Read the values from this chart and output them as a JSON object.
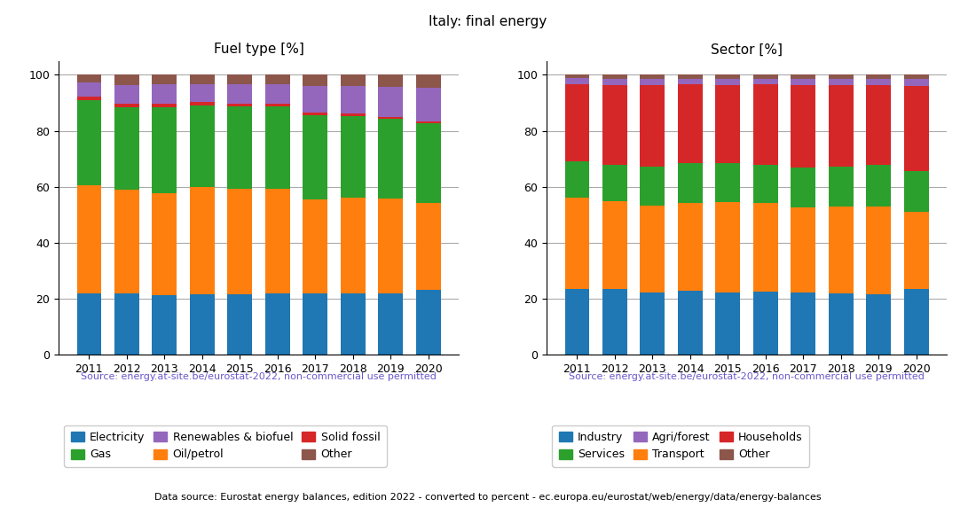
{
  "years": [
    2011,
    2012,
    2013,
    2014,
    2015,
    2016,
    2017,
    2018,
    2019,
    2020
  ],
  "title": "Italy: final energy",
  "source_text": "Source: energy.at-site.be/eurostat-2022, non-commercial use permitted",
  "footer_text": "Data source: Eurostat energy balances, edition 2022 - converted to percent - ec.europa.eu/eurostat/web/energy/data/energy-balances",
  "fuel": {
    "title": "Fuel type [%]",
    "Electricity": [
      22.1,
      21.9,
      21.4,
      21.8,
      21.8,
      21.9,
      21.9,
      22.1,
      22.0,
      23.2
    ],
    "Oil/petrol": [
      38.5,
      37.2,
      36.3,
      38.2,
      37.4,
      37.3,
      33.7,
      34.0,
      33.9,
      31.0
    ],
    "Gas": [
      30.3,
      29.3,
      30.8,
      29.1,
      29.6,
      29.6,
      30.1,
      29.2,
      28.4,
      28.5
    ],
    "Solid fossil": [
      1.2,
      1.3,
      1.1,
      1.2,
      1.0,
      1.0,
      0.9,
      1.0,
      0.8,
      0.6
    ],
    "Renewables & biofuel": [
      5.1,
      6.6,
      7.1,
      6.5,
      6.7,
      6.9,
      9.3,
      9.7,
      10.7,
      12.0
    ],
    "Other": [
      2.8,
      3.7,
      3.3,
      3.2,
      3.5,
      3.3,
      4.1,
      4.0,
      4.2,
      4.7
    ],
    "colors": {
      "Electricity": "#1f77b4",
      "Oil/petrol": "#ff7f0e",
      "Gas": "#2ca02c",
      "Solid fossil": "#d62728",
      "Renewables & biofuel": "#9467bd",
      "Other": "#8c564b"
    },
    "legend_order": [
      "Electricity",
      "Gas",
      "Renewables & biofuel",
      "Oil/petrol",
      "Solid fossil",
      "Other"
    ]
  },
  "sector": {
    "title": "Sector [%]",
    "Industry": [
      23.5,
      23.4,
      22.4,
      22.8,
      22.4,
      22.5,
      22.4,
      22.0,
      21.6,
      23.4
    ],
    "Transport": [
      32.7,
      31.4,
      31.0,
      31.4,
      32.1,
      31.7,
      30.2,
      31.1,
      31.5,
      27.8
    ],
    "Services": [
      12.9,
      13.0,
      13.7,
      14.2,
      14.0,
      13.7,
      14.4,
      14.2,
      14.7,
      14.5
    ],
    "Households": [
      27.6,
      28.6,
      29.2,
      28.1,
      27.9,
      28.6,
      29.2,
      29.1,
      28.5,
      30.3
    ],
    "Agri/forest": [
      2.1,
      2.3,
      2.3,
      2.2,
      2.3,
      2.2,
      2.4,
      2.3,
      2.4,
      2.5
    ],
    "Other": [
      1.2,
      1.3,
      1.4,
      1.3,
      1.3,
      1.3,
      1.4,
      1.3,
      1.3,
      1.5
    ],
    "colors": {
      "Industry": "#1f77b4",
      "Transport": "#ff7f0e",
      "Services": "#2ca02c",
      "Households": "#d62728",
      "Agri/forest": "#9467bd",
      "Other": "#8c564b"
    },
    "legend_order": [
      "Industry",
      "Services",
      "Agri/forest",
      "Transport",
      "Households",
      "Other"
    ]
  },
  "bar_width": 0.65,
  "ylim": [
    0,
    105
  ],
  "yticks": [
    0,
    20,
    40,
    60,
    80,
    100
  ],
  "source_color": "#6959CD",
  "grid_color": "#aaaaaa",
  "title_fontsize": 11,
  "subtitle_fontsize": 11,
  "tick_fontsize": 9,
  "legend_fontsize": 9,
  "source_fontsize": 8,
  "footer_fontsize": 8
}
